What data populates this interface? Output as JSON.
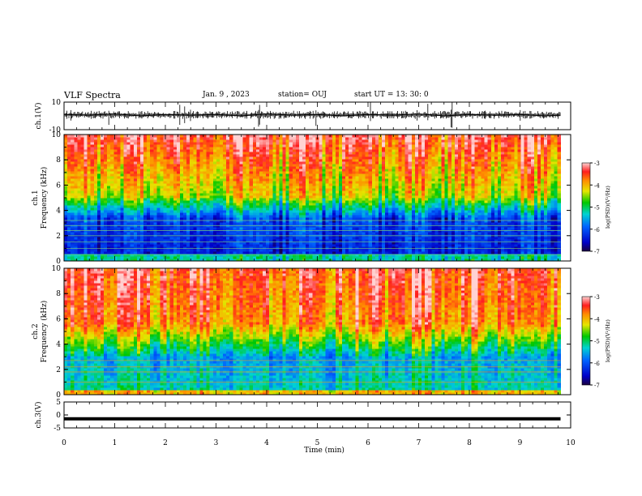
{
  "header": {
    "title": "VLF Spectra",
    "date": "Jan. 9 , 2023",
    "station": "station= OUJ",
    "start": "start UT = 13: 30: 0"
  },
  "colors": {
    "background": "#ffffff",
    "axis": "#000000",
    "trace": "#000000"
  },
  "chart_data": [
    {
      "type": "line",
      "id": "ch1-waveform",
      "ylabel": "ch.1(V)",
      "ylim": [
        -10,
        10
      ],
      "y_ticks": [
        "10",
        "-10"
      ],
      "xlim": [
        0,
        10
      ],
      "x": [
        0,
        0.5,
        1,
        1.5,
        2,
        2.5,
        3,
        3.5,
        4,
        4.5,
        5,
        5.5,
        6,
        6.5,
        7,
        7.5,
        8,
        8.5,
        9,
        9.5,
        9.8
      ],
      "values": [
        1,
        0.5,
        1.5,
        0,
        1,
        0.5,
        1,
        0,
        1.5,
        0.5,
        1,
        0,
        1,
        0.5,
        1.5,
        0,
        1,
        0.5,
        1,
        0,
        0.5
      ]
    },
    {
      "type": "heatmap",
      "id": "ch1-spectrogram",
      "ylabel": "ch.1\nFrequency (kHz)",
      "ylim": [
        0,
        10
      ],
      "y_ticks": [
        "0",
        "2",
        "4",
        "6",
        "8",
        "10"
      ],
      "xlim": [
        0,
        10
      ],
      "data_end_min": 9.8,
      "colorbar": {
        "label": "log(PSD)(V²/Hz)",
        "range": [
          -7,
          -3
        ],
        "ticks": [
          "-3",
          "-4",
          "-5",
          "-6",
          "-7"
        ]
      }
    },
    {
      "type": "heatmap",
      "id": "ch2-spectrogram",
      "ylabel": "ch.2\nFrequency (kHz)",
      "ylim": [
        0,
        10
      ],
      "y_ticks": [
        "0",
        "2",
        "4",
        "6",
        "8",
        "10"
      ],
      "xlim": [
        0,
        10
      ],
      "data_end_min": 9.8,
      "colorbar": {
        "label": "log(PSD)(V²/Hz)",
        "range": [
          -7,
          -3
        ],
        "ticks": [
          "-3",
          "-4",
          "-5",
          "-6",
          "-7"
        ]
      }
    },
    {
      "type": "line",
      "id": "ch3-waveform",
      "ylabel": "ch.3(V)",
      "ylim": [
        -5,
        5
      ],
      "y_ticks": [
        "5",
        "0",
        "-5"
      ],
      "xlim": [
        0,
        10
      ],
      "x": [
        0,
        9.8
      ],
      "values": [
        -1.5,
        -1.5
      ]
    }
  ],
  "x_axis": {
    "label": "Time (min)",
    "ticks": [
      "0",
      "1",
      "2",
      "3",
      "4",
      "5",
      "6",
      "7",
      "8",
      "9",
      "10"
    ]
  }
}
